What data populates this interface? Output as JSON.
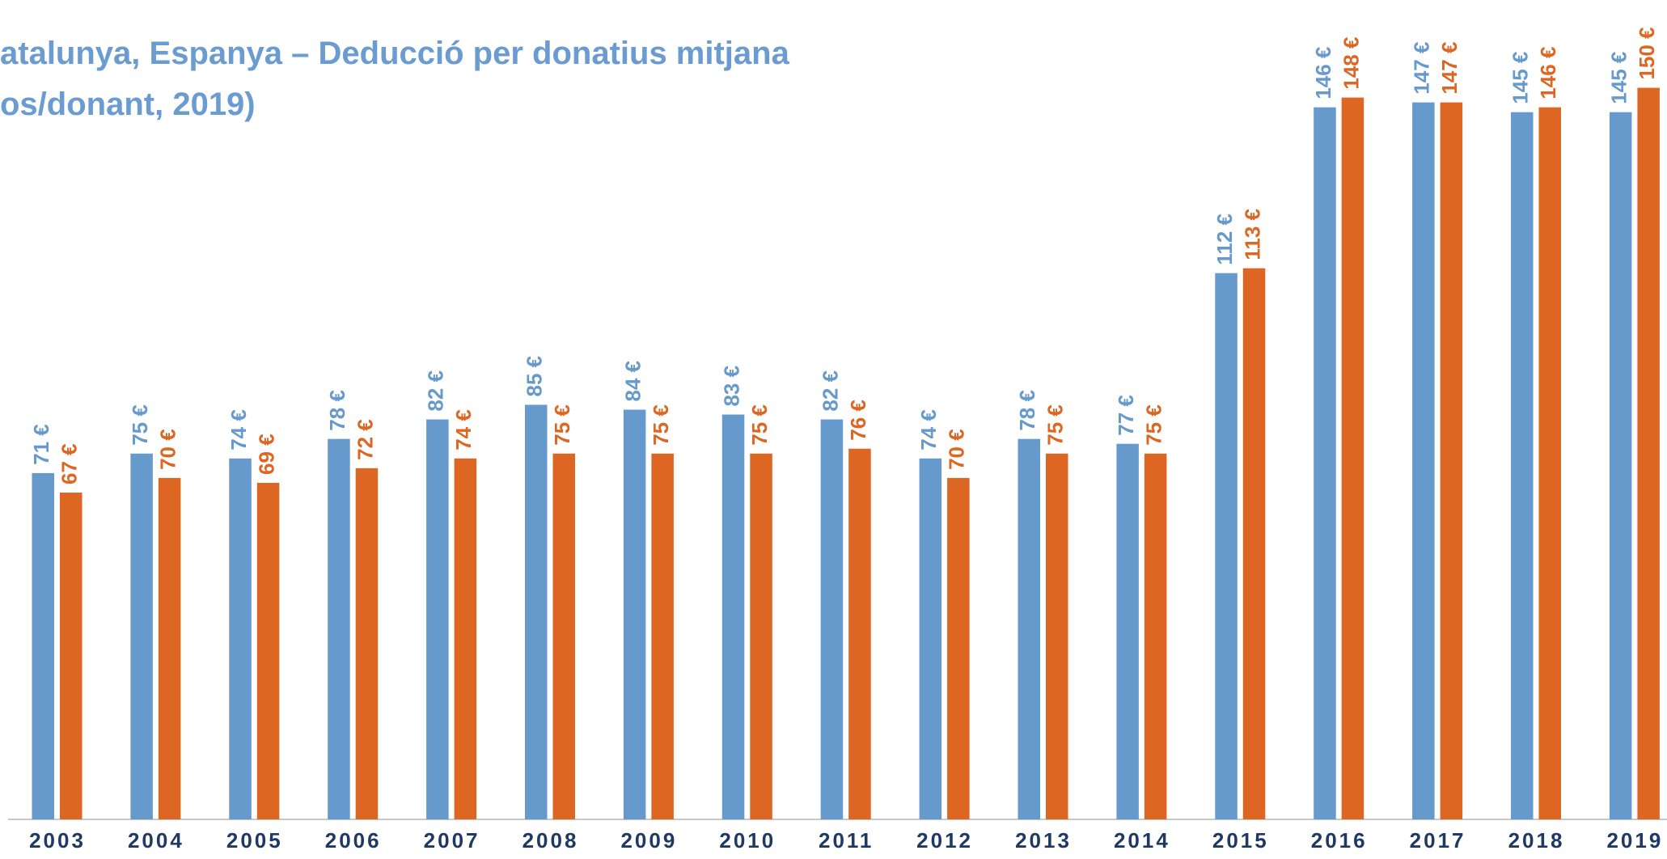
{
  "chart_data": {
    "type": "bar",
    "title": [
      "atalunya, Espanya – Deducció per donatius mitjana",
      "os/donant, 2019)"
    ],
    "categories": [
      "2003",
      "2004",
      "2005",
      "2006",
      "2007",
      "2008",
      "2009",
      "2010",
      "2011",
      "2012",
      "2013",
      "2014",
      "2015",
      "2016",
      "2017",
      "2018",
      "2019"
    ],
    "series": [
      {
        "color": "#6699cc",
        "values": [
          71,
          75,
          74,
          78,
          82,
          85,
          84,
          83,
          82,
          74,
          78,
          77,
          112,
          146,
          147,
          145,
          145
        ],
        "value_labels": [
          "71 €",
          "75 €",
          "74 €",
          "78 €",
          "82 €",
          "85 €",
          "84 €",
          "83 €",
          "82 €",
          "74 €",
          "78 €",
          "77 €",
          "112 €",
          "146 €",
          "147 €",
          "145 €",
          "145 €"
        ]
      },
      {
        "color": "#dd6622",
        "values": [
          67,
          70,
          69,
          72,
          74,
          75,
          75,
          75,
          76,
          70,
          75,
          75,
          113,
          148,
          147,
          146,
          150
        ],
        "value_labels": [
          "67 €",
          "70 €",
          "69 €",
          "72 €",
          "74 €",
          "75 €",
          "75 €",
          "75 €",
          "76 €",
          "70 €",
          "75 €",
          "75 €",
          "113 €",
          "148 €",
          "147 €",
          "146 €",
          "150 €"
        ]
      }
    ],
    "ylim": [
      0,
      168
    ]
  }
}
